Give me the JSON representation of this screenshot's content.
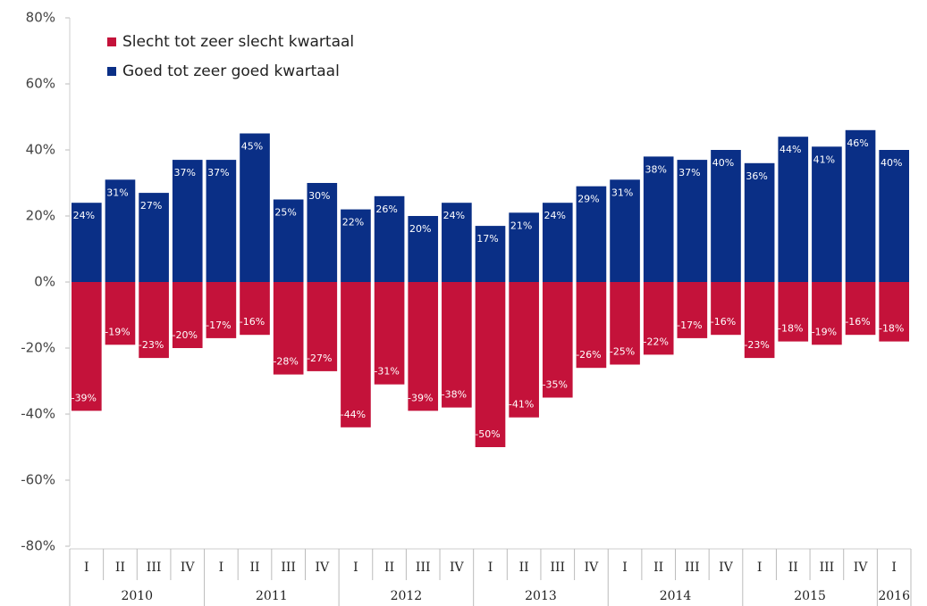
{
  "chart_data": {
    "type": "bar",
    "series": [
      {
        "name": "Slecht tot zeer slecht kwartaal",
        "color": "#c4123a",
        "values": [
          -39,
          -19,
          -23,
          -20,
          -17,
          -16,
          -28,
          -27,
          -44,
          -31,
          -39,
          -38,
          -50,
          -41,
          -35,
          -26,
          -25,
          -22,
          -17,
          -16,
          -23,
          -18,
          -19,
          -16,
          -18
        ],
        "value_labels": [
          "-39%",
          "-19%",
          "-23%",
          "-20%",
          "-17%",
          "-16%",
          "-28%",
          "-27%",
          "-44%",
          "-31%",
          "-39%",
          "-38%",
          "-50%",
          "-41%",
          "-35%",
          "-26%",
          "-25%",
          "-22%",
          "-17%",
          "-16%",
          "-23%",
          "-18%",
          "-19%",
          "-16%",
          "-18%"
        ]
      },
      {
        "name": "Goed tot zeer goed kwartaal",
        "color": "#0a2f86",
        "values": [
          24,
          31,
          27,
          37,
          37,
          45,
          25,
          30,
          22,
          26,
          20,
          24,
          17,
          21,
          24,
          29,
          31,
          38,
          37,
          40,
          36,
          44,
          41,
          46,
          40
        ],
        "value_labels": [
          "24%",
          "31%",
          "27%",
          "37%",
          "37%",
          "45%",
          "25%",
          "30%",
          "22%",
          "26%",
          "20%",
          "24%",
          "17%",
          "21%",
          "24%",
          "29%",
          "31%",
          "38%",
          "37%",
          "40%",
          "36%",
          "44%",
          "41%",
          "46%",
          "40%"
        ]
      }
    ],
    "groups": [
      {
        "label": "2010",
        "categories": [
          "I",
          "II",
          "III",
          "IV"
        ]
      },
      {
        "label": "2011",
        "categories": [
          "I",
          "II",
          "III",
          "IV"
        ]
      },
      {
        "label": "2012",
        "categories": [
          "I",
          "II",
          "III",
          "IV"
        ]
      },
      {
        "label": "2013",
        "categories": [
          "I",
          "II",
          "III",
          "IV"
        ]
      },
      {
        "label": "2014",
        "categories": [
          "I",
          "II",
          "III",
          "IV"
        ]
      },
      {
        "label": "2015",
        "categories": [
          "I",
          "II",
          "III",
          "IV"
        ]
      },
      {
        "label": "2016",
        "categories": [
          "I"
        ]
      }
    ],
    "ylim": [
      -80,
      80
    ],
    "yticks": [
      {
        "value": -80,
        "label": "-80%"
      },
      {
        "value": -60,
        "label": "-60%"
      },
      {
        "value": -40,
        "label": "-40%"
      },
      {
        "value": -20,
        "label": "-20%"
      },
      {
        "value": 0,
        "label": "0%"
      },
      {
        "value": 20,
        "label": "20%"
      },
      {
        "value": 40,
        "label": "40%"
      },
      {
        "value": 60,
        "label": "60%"
      },
      {
        "value": 80,
        "label": "80%"
      }
    ],
    "legend": "top-left"
  }
}
